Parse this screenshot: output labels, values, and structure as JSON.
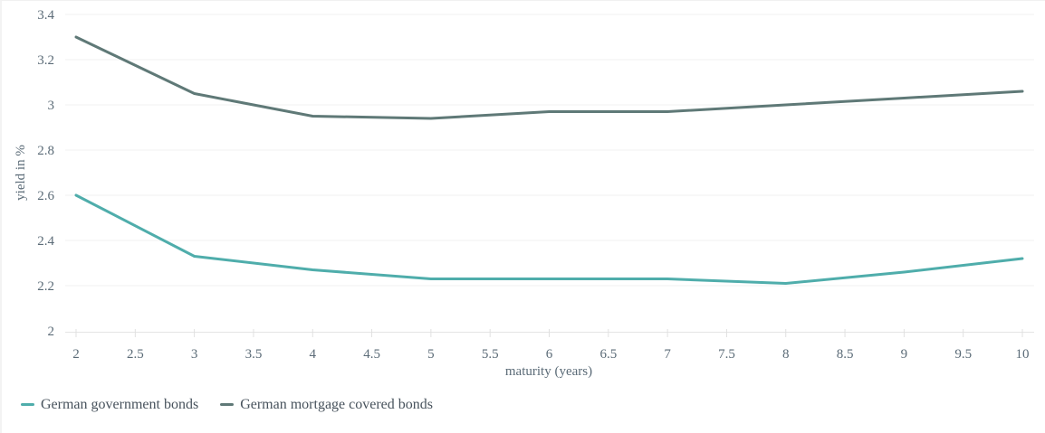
{
  "chart_data": {
    "type": "line",
    "title": "",
    "xlabel": "maturity (years)",
    "ylabel": "yield in %",
    "xlim": [
      2,
      10
    ],
    "ylim": [
      2,
      3.4
    ],
    "xticks": [
      2,
      2.5,
      3,
      3.5,
      4,
      4.5,
      5,
      5.5,
      6,
      6.5,
      7,
      7.5,
      8,
      8.5,
      9,
      9.5,
      10
    ],
    "yticks": [
      2,
      2.2,
      2.4,
      2.6,
      2.8,
      3,
      3.2,
      3.4
    ],
    "x": [
      2,
      3,
      4,
      5,
      6,
      7,
      8,
      9,
      10
    ],
    "series": [
      {
        "name": "German government bonds",
        "color": "#4fadab",
        "values": [
          2.6,
          2.33,
          2.27,
          2.23,
          2.23,
          2.23,
          2.21,
          2.26,
          2.32
        ]
      },
      {
        "name": "German mortgage covered bonds",
        "color": "#5f7977",
        "values": [
          3.3,
          3.05,
          2.95,
          2.94,
          2.97,
          2.97,
          3.0,
          3.03,
          3.06
        ]
      }
    ],
    "grid": "horizontal",
    "legend_position": "bottom-left",
    "colors": {
      "background": "#ffffff",
      "gridline": "#f0f0f0",
      "axis_line": "#e4e4e4",
      "tick_mark": "#e0e0e0",
      "tick_label": "#5b6b77",
      "legend_text": "#47525c"
    }
  }
}
